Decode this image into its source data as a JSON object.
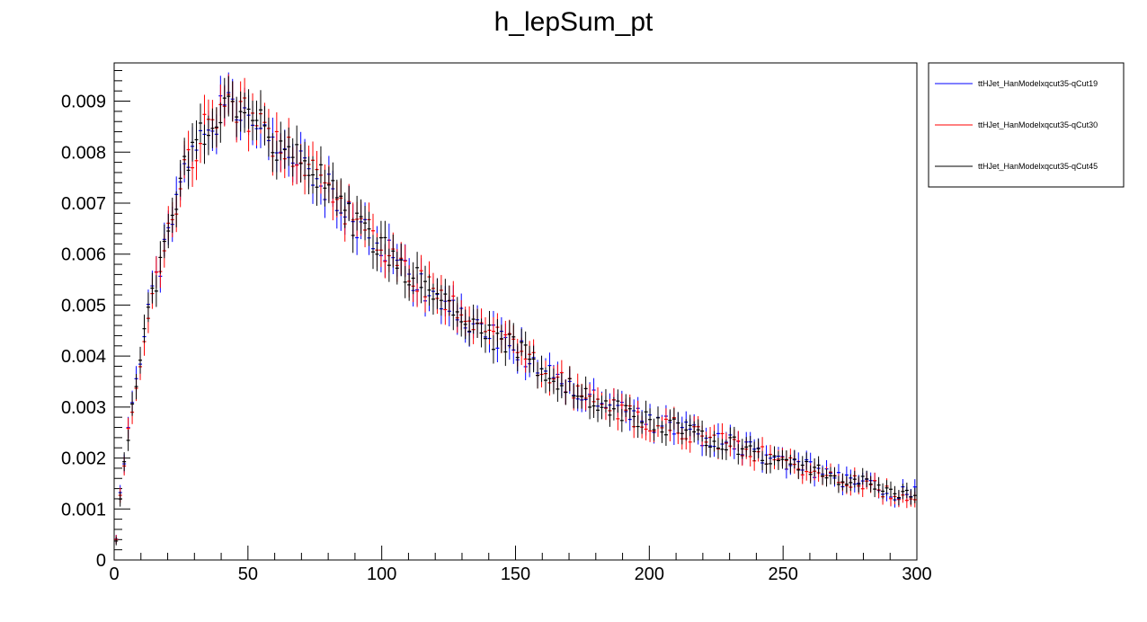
{
  "chart_data": {
    "type": "scatter",
    "title": "h_lepSum_pt",
    "xlabel": "",
    "ylabel": "",
    "xlim": [
      0,
      300
    ],
    "ylim": [
      0,
      0.00975
    ],
    "x_ticks": [
      0,
      50,
      100,
      150,
      200,
      250,
      300
    ],
    "y_ticks": [
      0,
      0.001,
      0.002,
      0.003,
      0.004,
      0.005,
      0.006,
      0.007,
      0.008,
      0.009
    ],
    "x_tick_labels": [
      "0",
      "50",
      "100",
      "150",
      "200",
      "250",
      "300"
    ],
    "y_tick_labels": [
      "0",
      "0.001",
      "0.002",
      "0.003",
      "0.004",
      "0.005",
      "0.006",
      "0.007",
      "0.008",
      "0.009"
    ],
    "bin_width": 1.5,
    "error_bars": true,
    "grid": false,
    "legend_position": "outside-top-right",
    "profile_knots": [
      [
        0.75,
        0.0004
      ],
      [
        3,
        0.0017
      ],
      [
        5,
        0.0024
      ],
      [
        7,
        0.0032
      ],
      [
        9,
        0.0037
      ],
      [
        12,
        0.0046
      ],
      [
        15,
        0.0053
      ],
      [
        18,
        0.006
      ],
      [
        22,
        0.0068
      ],
      [
        26,
        0.0076
      ],
      [
        30,
        0.0081
      ],
      [
        35,
        0.0085
      ],
      [
        40,
        0.0088
      ],
      [
        45,
        0.0089
      ],
      [
        50,
        0.0087
      ],
      [
        55,
        0.0085
      ],
      [
        60,
        0.0082
      ],
      [
        70,
        0.0079
      ],
      [
        80,
        0.0073
      ],
      [
        90,
        0.0066
      ],
      [
        100,
        0.0062
      ],
      [
        110,
        0.0056
      ],
      [
        120,
        0.0052
      ],
      [
        130,
        0.0048
      ],
      [
        140,
        0.0044
      ],
      [
        150,
        0.0042
      ],
      [
        160,
        0.0037
      ],
      [
        170,
        0.0034
      ],
      [
        180,
        0.0031
      ],
      [
        190,
        0.0029
      ],
      [
        200,
        0.0027
      ],
      [
        210,
        0.0026
      ],
      [
        220,
        0.0024
      ],
      [
        230,
        0.0023
      ],
      [
        240,
        0.0021
      ],
      [
        250,
        0.0019
      ],
      [
        260,
        0.0018
      ],
      [
        270,
        0.0016
      ],
      [
        280,
        0.0015
      ],
      [
        290,
        0.0013
      ],
      [
        300,
        0.0013
      ]
    ],
    "series": [
      {
        "name": "ttHJet_HanModelxqcut35-qCut19",
        "color": "#0000ff",
        "seed": 19
      },
      {
        "name": "ttHJet_HanModelxqcut35-qCut30",
        "color": "#ff0000",
        "seed": 30
      },
      {
        "name": "ttHJet_HanModelxqcut35-qCut45",
        "color": "#000000",
        "seed": 45
      }
    ]
  }
}
